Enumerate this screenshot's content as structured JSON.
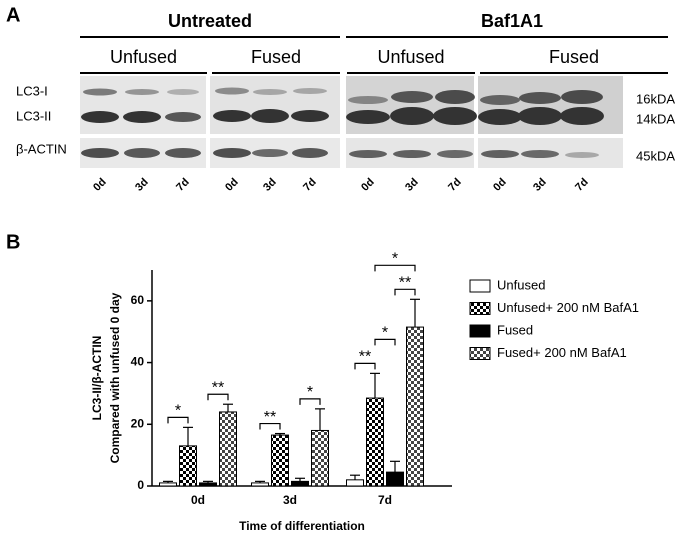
{
  "panel_a": {
    "label": "A",
    "groups": [
      {
        "title": "Untreated",
        "subgroups": [
          {
            "title": "Unfused",
            "lanes": [
              "0d",
              "3d",
              "7d"
            ]
          },
          {
            "title": "Fused",
            "lanes": [
              "0d",
              "3d",
              "7d"
            ]
          }
        ]
      },
      {
        "title": "Baf1A1",
        "subgroups": [
          {
            "title": "Unfused",
            "lanes": [
              "0d",
              "3d",
              "7d"
            ]
          },
          {
            "title": "Fused",
            "lanes": [
              "0d",
              "3d",
              "7d"
            ]
          }
        ]
      }
    ],
    "band_labels": [
      "LC3-I",
      "LC3-II",
      "β-ACTIN"
    ],
    "sizes": [
      "16kDA",
      "14kDA",
      "45kDA"
    ]
  },
  "panel_b": {
    "label": "B"
  },
  "chart_data": {
    "type": "bar",
    "y_label": [
      "LC3-II/β-ACTIN",
      "Compared with unfused 0 day"
    ],
    "x_label": "Time of differentiation",
    "categories": [
      "0d",
      "3d",
      "7d"
    ],
    "series": [
      {
        "name": "Unfused",
        "color": "#ffffff",
        "values": [
          1,
          1,
          2
        ],
        "errors": [
          0.5,
          0.5,
          1.5
        ]
      },
      {
        "name": "Unfused+ 200 nM BafA1",
        "color": "#000000",
        "pattern": "checker",
        "values": [
          13,
          16.5,
          28.5
        ],
        "errors": [
          6,
          0.5,
          8
        ]
      },
      {
        "name": "Fused",
        "color": "#000000",
        "values": [
          1,
          1.5,
          4.5
        ],
        "errors": [
          0.5,
          1,
          3.5
        ]
      },
      {
        "name": "Fused+ 200 nM BafA1",
        "color": "#444444",
        "pattern": "checker",
        "values": [
          24,
          18,
          51.5
        ],
        "errors": [
          2.5,
          7,
          9
        ]
      }
    ],
    "annotations": [
      {
        "text": "*",
        "category": 0,
        "pair": [
          0,
          1
        ]
      },
      {
        "text": "**",
        "category": 0,
        "pair": [
          2,
          3
        ]
      },
      {
        "text": "**",
        "category": 1,
        "pair": [
          0,
          1
        ]
      },
      {
        "text": "*",
        "category": 1,
        "pair": [
          2,
          3
        ]
      },
      {
        "text": "**",
        "category": 2,
        "pair": [
          0,
          1
        ]
      },
      {
        "text": "*",
        "category": 2,
        "pair": [
          1,
          2
        ]
      },
      {
        "text": "**",
        "category": 2,
        "pair": [
          2,
          3
        ]
      },
      {
        "text": "*",
        "category": 2,
        "pair": [
          1,
          3
        ]
      }
    ],
    "ylim": [
      0,
      70
    ],
    "yticks": [
      0,
      20,
      40,
      60
    ],
    "legend": "right"
  }
}
